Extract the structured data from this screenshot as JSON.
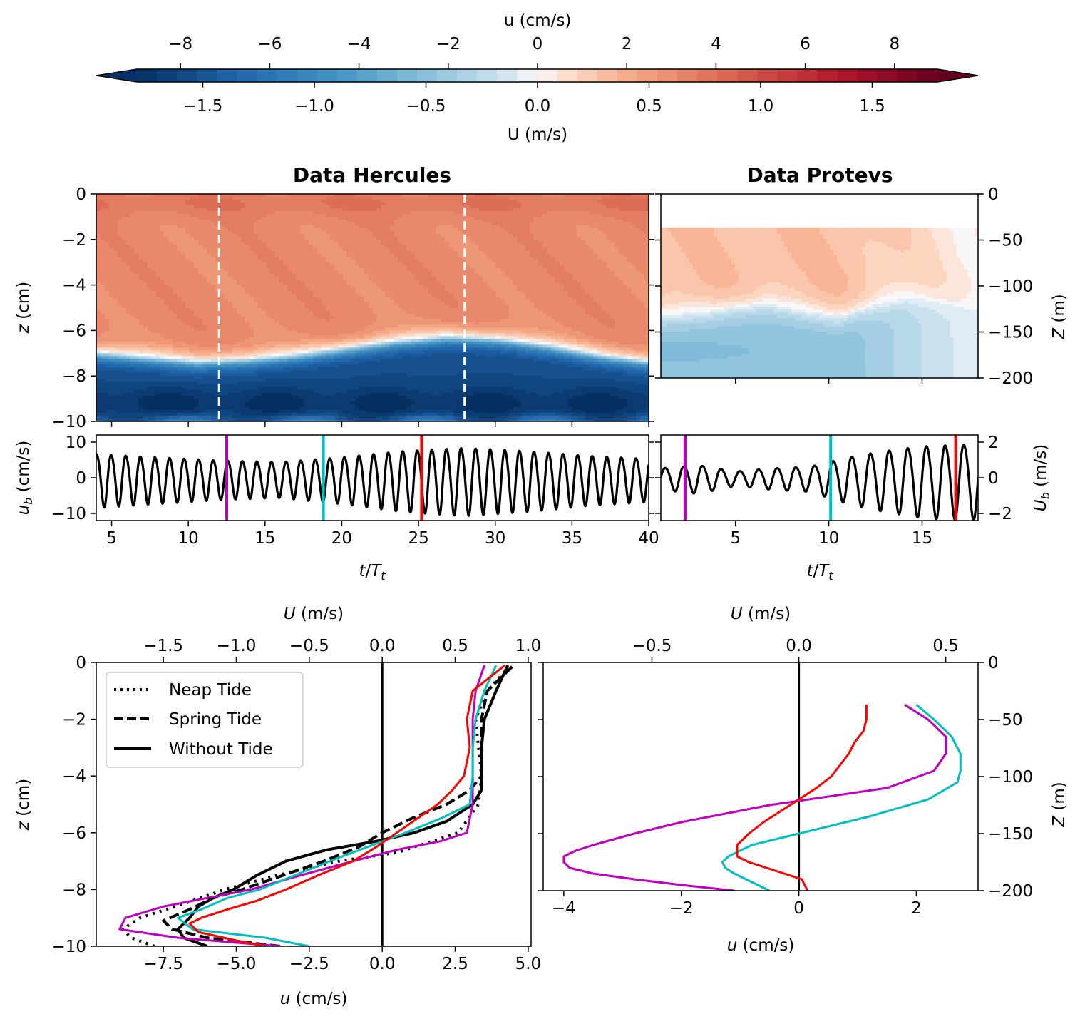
{
  "colorbar": {
    "top_label": "u (cm/s)",
    "top_ticks": [
      "−8",
      "−6",
      "−4",
      "−2",
      "0",
      "2",
      "4",
      "6",
      "8"
    ],
    "bottom_label": "U (m/s)",
    "bottom_ticks": [
      "−1.5",
      "−1.0",
      "−0.5",
      "0.0",
      "0.5",
      "1.0",
      "1.5"
    ],
    "levels": 40,
    "neg_color": "#08306b",
    "mid_color": "#f7f7f7",
    "pos_color": "#67001f"
  },
  "titles": {
    "hercules": "Data Hercules",
    "protevs": "Data Protevs"
  },
  "colors": {
    "magenta": "#bf00bf",
    "cyan": "#00bfbf",
    "red": "#ff0000",
    "black": "#000000",
    "white_dash": "#ffffff"
  },
  "chart_data": [
    {
      "type": "heatmap",
      "name": "hercules_contour",
      "title": "Data Hercules",
      "xlim": [
        4,
        40
      ],
      "ylim": [
        -10,
        0
      ],
      "ylabel": "z (cm)",
      "yticks": [
        "0",
        "−2",
        "−4",
        "−6",
        "−8",
        "−10"
      ],
      "interface_depth_cm": [
        -6.9,
        -7.1,
        -7.3,
        -7.2,
        -7.0,
        -6.7,
        -6.4,
        -6.2,
        -6.3,
        -6.6,
        -7.0,
        -7.3
      ],
      "upper_layer_u_cm_s": 3.0,
      "lower_layer_u_cm_s": -7.5,
      "dashed_lines_t": [
        12,
        28
      ]
    },
    {
      "type": "heatmap",
      "name": "protevs_contour",
      "title": "Data Protevs",
      "xlim": [
        1,
        18
      ],
      "ylim": [
        -200,
        0
      ],
      "data_top_m": -37,
      "ylabel": "Z (m)",
      "yticks": [
        "0",
        "−50",
        "−100",
        "−150",
        "−200"
      ],
      "interface_depth_m": [
        -130,
        -128,
        -122,
        -118,
        -125,
        -132,
        -120,
        -110,
        -115,
        -120
      ],
      "upper_layer_U_m_s": 0.3,
      "lower_layer_U_m_s": -0.45
    },
    {
      "type": "line",
      "name": "hercules_ub",
      "xlabel": "t/Tt",
      "ylabel": "u_b (cm/s)",
      "xlim": [
        4,
        40
      ],
      "ylim": [
        -12,
        12
      ],
      "xticks": [
        "5",
        "10",
        "15",
        "20",
        "25",
        "30",
        "35",
        "40"
      ],
      "yticks": [
        "10",
        "0",
        "−10"
      ],
      "period": 0.95,
      "amplitude_envelope": {
        "t": [
          4,
          8,
          12,
          16,
          20,
          24,
          28,
          32,
          36,
          40
        ],
        "amp": [
          7.5,
          6.5,
          5.5,
          5.0,
          6.5,
          8.5,
          9.5,
          8.5,
          7.0,
          6.0
        ]
      },
      "markers": [
        {
          "t": 12.5,
          "color": "magenta"
        },
        {
          "t": 18.8,
          "color": "cyan"
        },
        {
          "t": 25.2,
          "color": "red"
        }
      ]
    },
    {
      "type": "line",
      "name": "protevs_ub",
      "xlabel": "t/Tt",
      "ylabel": "U_b (m/s)",
      "xlim": [
        1,
        18
      ],
      "ylim": [
        -2.4,
        2.4
      ],
      "xticks": [
        "5",
        "10",
        "15"
      ],
      "yticks": [
        "2",
        "0",
        "−2"
      ],
      "period": 1.0,
      "amplitude_envelope": {
        "t": [
          1,
          3,
          5,
          7,
          9,
          11,
          13,
          15,
          17,
          18
        ],
        "amp": [
          0.6,
          0.8,
          0.4,
          0.6,
          0.7,
          1.3,
          1.7,
          2.0,
          2.1,
          2.1
        ]
      },
      "markers": [
        {
          "t": 2.3,
          "color": "magenta"
        },
        {
          "t": 10.1,
          "color": "cyan"
        },
        {
          "t": 16.8,
          "color": "red"
        }
      ]
    },
    {
      "type": "line",
      "name": "hercules_profiles",
      "xlabel": "u (cm/s)",
      "top_xlabel": "U (m/s)",
      "ylabel": "z (cm)",
      "xlim": [
        -9.8,
        5.1
      ],
      "ylim": [
        -10,
        0
      ],
      "xticks": [
        "−7.5",
        "−5.0",
        "−2.5",
        "0.0",
        "2.5",
        "5.0"
      ],
      "top_xticks": [
        "−1.5",
        "−1.0",
        "−0.5",
        "0.0",
        "0.5",
        "1.0"
      ],
      "yticks": [
        "0",
        "−2",
        "−4",
        "−6",
        "−8",
        "−10"
      ],
      "legend": [
        "Neap Tide",
        "Spring Tide",
        "Without Tide"
      ],
      "series": [
        {
          "name": "Neap Tide",
          "color": "black",
          "style": "dotted",
          "z": [
            -10,
            -9.7,
            -9.4,
            -9.0,
            -8.5,
            -8.0,
            -7.5,
            -7.0,
            -6.7,
            -6.0,
            -5.0,
            -4.0,
            -3.0,
            -2.0,
            -1.0,
            -0.2
          ],
          "u": [
            -7.8,
            -8.6,
            -8.9,
            -8.3,
            -6.8,
            -5.4,
            -3.6,
            -1.5,
            0.5,
            2.6,
            3.3,
            3.4,
            3.3,
            3.2,
            3.6,
            4.3
          ]
        },
        {
          "name": "Spring Tide",
          "color": "black",
          "style": "dashed",
          "z": [
            -10,
            -9.7,
            -9.4,
            -9.1,
            -8.7,
            -8.3,
            -8.0,
            -7.5,
            -7.0,
            -6.5,
            -6.0,
            -5.5,
            -5.0,
            -4.5,
            -4.0,
            -3.0,
            -2.0,
            -1.0,
            -0.1
          ],
          "u": [
            -3.5,
            -6.0,
            -7.2,
            -7.5,
            -6.6,
            -5.8,
            -4.8,
            -3.4,
            -2.0,
            -0.8,
            0.0,
            1.0,
            2.2,
            3.0,
            3.4,
            3.4,
            3.4,
            3.6,
            4.5
          ]
        },
        {
          "name": "Without Tide",
          "color": "black",
          "style": "solid",
          "z": [
            -10,
            -9.7,
            -9.4,
            -9.0,
            -8.6,
            -8.3,
            -8.0,
            -7.5,
            -7.0,
            -6.6,
            -6.3,
            -6.0,
            -5.6,
            -5.0,
            -4.5,
            -4.0,
            -3.0,
            -2.0,
            -1.0,
            -0.1
          ],
          "u": [
            -6.0,
            -6.8,
            -7.0,
            -6.6,
            -6.3,
            -5.8,
            -5.1,
            -4.3,
            -3.3,
            -1.9,
            -0.2,
            1.1,
            2.2,
            3.1,
            3.4,
            3.4,
            3.4,
            3.5,
            3.9,
            4.3
          ]
        },
        {
          "name": "t=12.5",
          "color": "magenta",
          "style": "solid",
          "z": [
            -10,
            -9.7,
            -9.4,
            -9.0,
            -8.6,
            -8.3,
            -8.0,
            -7.5,
            -7.0,
            -6.6,
            -6.3,
            -6.0,
            -5.0,
            -4.0,
            -3.0,
            -2.0,
            -1.0,
            -0.1
          ],
          "u": [
            -3.5,
            -7.0,
            -9.0,
            -8.8,
            -7.5,
            -6.0,
            -4.5,
            -2.8,
            -1.0,
            0.5,
            2.0,
            2.9,
            3.1,
            3.1,
            3.1,
            3.1,
            3.2,
            3.5
          ]
        },
        {
          "name": "t=18.8",
          "color": "cyan",
          "style": "solid",
          "z": [
            -10,
            -9.7,
            -9.4,
            -9.0,
            -8.7,
            -8.3,
            -8.0,
            -7.5,
            -7.0,
            -6.5,
            -6.0,
            -5.5,
            -5.0,
            -4.0,
            -3.0,
            -2.0,
            -1.0,
            -0.1
          ],
          "u": [
            -2.5,
            -4.0,
            -6.5,
            -7.0,
            -6.2,
            -5.3,
            -4.2,
            -3.0,
            -1.8,
            -0.5,
            0.8,
            2.0,
            3.0,
            3.1,
            3.1,
            3.2,
            3.5,
            3.9
          ]
        },
        {
          "name": "t=25.2",
          "color": "red",
          "style": "solid",
          "z": [
            -10,
            -9.8,
            -9.5,
            -9.2,
            -9.0,
            -8.7,
            -8.4,
            -8.0,
            -7.5,
            -7.0,
            -6.5,
            -6.0,
            -5.5,
            -5.0,
            -4.5,
            -4.0,
            -3.0,
            -2.0,
            -1.0,
            -0.1
          ],
          "u": [
            -4.0,
            -5.0,
            -6.3,
            -6.6,
            -6.2,
            -5.3,
            -4.3,
            -3.3,
            -2.2,
            -1.0,
            -0.2,
            0.5,
            1.2,
            1.9,
            2.4,
            2.8,
            3.0,
            2.9,
            3.1,
            4.2
          ]
        }
      ]
    },
    {
      "type": "line",
      "name": "protevs_profiles",
      "xlabel": "u (cm/s)",
      "top_xlabel": "U (m/s)",
      "ylabel": "Z (m)",
      "xlim": [
        -4.35,
        3.05
      ],
      "ylim": [
        -200,
        0
      ],
      "xticks": [
        "−4",
        "−2",
        "0",
        "2"
      ],
      "top_xticks": [
        "−0.5",
        "0.0",
        "0.5"
      ],
      "yticks": [
        "0",
        "−50",
        "−100",
        "−150",
        "−200"
      ],
      "series": [
        {
          "name": "t=2.3",
          "color": "magenta",
          "style": "solid",
          "Z": [
            -37,
            -50,
            -65,
            -80,
            -95,
            -110,
            -125,
            -140,
            -150,
            -160,
            -165,
            -170,
            -175,
            -180,
            -185,
            -190,
            -195,
            -200
          ],
          "u": [
            1.8,
            2.2,
            2.5,
            2.5,
            2.3,
            1.5,
            -0.5,
            -2.0,
            -2.8,
            -3.5,
            -3.8,
            -4.0,
            -4.0,
            -3.9,
            -3.5,
            -2.8,
            -2.0,
            -1.1
          ]
        },
        {
          "name": "t=10.1",
          "color": "cyan",
          "style": "solid",
          "Z": [
            -37,
            -50,
            -65,
            -80,
            -95,
            -105,
            -120,
            -135,
            -150,
            -160,
            -170,
            -175,
            -180,
            -185,
            -190,
            -200
          ],
          "u": [
            2.0,
            2.3,
            2.6,
            2.75,
            2.75,
            2.7,
            2.2,
            1.2,
            0.0,
            -0.8,
            -1.2,
            -1.3,
            -1.25,
            -1.1,
            -0.9,
            -0.5
          ]
        },
        {
          "name": "t=16.8",
          "color": "red",
          "style": "solid",
          "Z": [
            -37,
            -50,
            -60,
            -70,
            -80,
            -90,
            -100,
            -110,
            -120,
            -130,
            -140,
            -150,
            -160,
            -170,
            -175,
            -180,
            -185,
            -190,
            -200
          ],
          "u": [
            1.15,
            1.15,
            1.1,
            0.95,
            0.85,
            0.7,
            0.55,
            0.3,
            0.0,
            -0.3,
            -0.6,
            -0.85,
            -1.05,
            -1.05,
            -0.85,
            -0.55,
            -0.25,
            0.05,
            0.15
          ]
        }
      ]
    }
  ]
}
